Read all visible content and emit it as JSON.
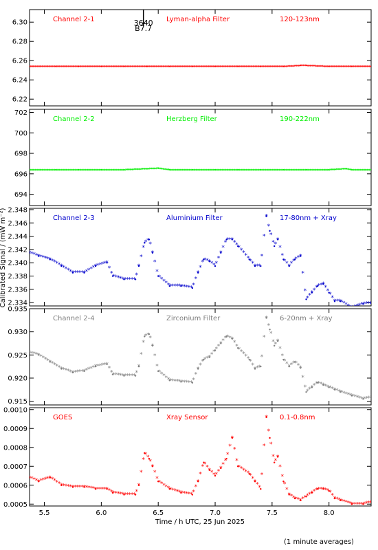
{
  "footer_note": "(1 minute averages)",
  "ylabel": "Calibrated Signal / (mW m⁻²)",
  "xlabel": "Time / h UTC, 25 Jun 2025",
  "xaxis": {
    "range": [
      5.37,
      8.37
    ],
    "ticks": [
      5.5,
      6.0,
      6.5,
      7.0,
      7.5,
      8.0
    ],
    "tick_labels": [
      "5.5",
      "6.0",
      "6.5",
      "7.0",
      "7.5",
      "8.0"
    ]
  },
  "marker_annotation": {
    "x": 6.37,
    "line1": "3640",
    "line2": "B7.7"
  },
  "chart_data": [
    {
      "type": "scatter",
      "channel": "Channel 2-1",
      "filter": "Lyman-alpha Filter",
      "band": "120-123nm",
      "color": "#ff0000",
      "ylim": [
        6.213,
        6.313
      ],
      "yticks": [
        6.22,
        6.24,
        6.26,
        6.28,
        6.3
      ],
      "ytick_labels": [
        "6.22",
        "6.24",
        "6.26",
        "6.28",
        "6.30"
      ],
      "x": [
        5.37,
        5.6,
        5.8,
        6.0,
        6.2,
        6.4,
        6.6,
        6.8,
        7.0,
        7.2,
        7.4,
        7.6,
        7.75,
        7.8,
        8.0,
        8.2,
        8.37
      ],
      "y": [
        6.254,
        6.254,
        6.254,
        6.254,
        6.254,
        6.254,
        6.254,
        6.254,
        6.254,
        6.254,
        6.254,
        6.254,
        6.255,
        6.255,
        6.254,
        6.254,
        6.254
      ]
    },
    {
      "type": "scatter",
      "channel": "Channel 2-2",
      "filter": "Herzberg Filter",
      "band": "190-222nm",
      "color": "#00ee00",
      "ylim": [
        692.9,
        702.3
      ],
      "yticks": [
        694,
        696,
        698,
        700,
        702
      ],
      "ytick_labels": [
        "694",
        "696",
        "698",
        "700",
        "702"
      ],
      "x": [
        5.37,
        5.6,
        5.8,
        6.0,
        6.2,
        6.5,
        6.6,
        6.8,
        7.0,
        7.2,
        7.4,
        7.6,
        7.8,
        8.0,
        8.15,
        8.2,
        8.37
      ],
      "y": [
        696.4,
        696.4,
        696.4,
        696.4,
        696.4,
        696.55,
        696.4,
        696.4,
        696.4,
        696.4,
        696.4,
        696.4,
        696.4,
        696.4,
        696.5,
        696.4,
        696.4
      ]
    },
    {
      "type": "scatter",
      "channel": "Channel 2-3",
      "filter": "Aluminium Filter",
      "band": "17-80nm + Xray",
      "color": "#0000cc",
      "ylim": [
        2.3335,
        2.3482
      ],
      "yticks": [
        2.334,
        2.336,
        2.338,
        2.34,
        2.342,
        2.344,
        2.346,
        2.348
      ],
      "ytick_labels": [
        "2.334",
        "2.336",
        "2.338",
        "2.340",
        "2.342",
        "2.344",
        "2.346",
        "2.348"
      ],
      "x": [
        5.37,
        5.45,
        5.55,
        5.65,
        5.75,
        5.85,
        5.95,
        6.05,
        6.1,
        6.2,
        6.3,
        6.33,
        6.38,
        6.42,
        6.45,
        6.5,
        6.6,
        6.7,
        6.8,
        6.85,
        6.9,
        6.95,
        7.0,
        7.05,
        7.1,
        7.15,
        7.2,
        7.3,
        7.35,
        7.4,
        7.45,
        7.48,
        7.52,
        7.55,
        7.6,
        7.65,
        7.7,
        7.75,
        7.8,
        7.85,
        7.9,
        7.95,
        8.0,
        8.05,
        8.1,
        8.2,
        8.3,
        8.37
      ],
      "y": [
        2.3415,
        2.341,
        2.3405,
        2.3395,
        2.3385,
        2.3385,
        2.3395,
        2.34,
        2.338,
        2.3375,
        2.3375,
        2.3395,
        2.343,
        2.3435,
        2.3415,
        2.338,
        2.3365,
        2.3365,
        2.3362,
        2.3385,
        2.3405,
        2.3402,
        2.3395,
        2.3415,
        2.3435,
        2.3435,
        2.3425,
        2.3405,
        2.3395,
        2.3395,
        2.347,
        2.3448,
        2.3425,
        2.3435,
        2.3405,
        2.3395,
        2.3405,
        2.341,
        2.3345,
        2.3355,
        2.3365,
        2.3368,
        2.3355,
        2.3342,
        2.3342,
        2.3332,
        2.3338,
        2.3339
      ]
    },
    {
      "type": "scatter",
      "channel": "Channel 2-4",
      "filter": "Zirconium Filter",
      "band": "6-20nm + Xray",
      "color": "#808080",
      "ylim": [
        0.9142,
        0.935
      ],
      "yticks": [
        0.915,
        0.92,
        0.925,
        0.93,
        0.935
      ],
      "ytick_labels": [
        "0.915",
        "0.920",
        "0.925",
        "0.930",
        "0.935"
      ],
      "x": [
        5.37,
        5.45,
        5.55,
        5.65,
        5.75,
        5.85,
        5.95,
        6.05,
        6.1,
        6.2,
        6.3,
        6.33,
        6.38,
        6.42,
        6.45,
        6.5,
        6.6,
        6.7,
        6.8,
        6.85,
        6.9,
        6.95,
        7.0,
        7.05,
        7.1,
        7.15,
        7.2,
        7.3,
        7.35,
        7.4,
        7.45,
        7.48,
        7.52,
        7.55,
        7.6,
        7.65,
        7.7,
        7.75,
        7.8,
        7.85,
        7.9,
        7.95,
        8.0,
        8.05,
        8.1,
        8.2,
        8.3,
        8.37
      ],
      "y": [
        0.9255,
        0.925,
        0.9235,
        0.922,
        0.9212,
        0.9215,
        0.9225,
        0.923,
        0.9208,
        0.9205,
        0.9205,
        0.9225,
        0.929,
        0.9295,
        0.927,
        0.9215,
        0.9195,
        0.9192,
        0.919,
        0.922,
        0.924,
        0.9245,
        0.926,
        0.9275,
        0.929,
        0.9285,
        0.9265,
        0.924,
        0.922,
        0.9225,
        0.933,
        0.9305,
        0.927,
        0.928,
        0.924,
        0.9225,
        0.9235,
        0.9222,
        0.917,
        0.918,
        0.919,
        0.9185,
        0.918,
        0.9175,
        0.917,
        0.9162,
        0.9155,
        0.9158
      ]
    },
    {
      "type": "scatter",
      "channel": "GOES",
      "filter": "Xray Sensor",
      "band": "0.1-0.8nm",
      "color": "#ff0000",
      "ylim": [
        0.00049,
        0.00101
      ],
      "yticks": [
        0.0005,
        0.0006,
        0.0007,
        0.0008,
        0.0009,
        0.001
      ],
      "ytick_labels": [
        "0.0005",
        "0.0006",
        "0.0007",
        "0.0008",
        "0.0009",
        "0.0010"
      ],
      "x": [
        5.37,
        5.45,
        5.55,
        5.65,
        5.75,
        5.85,
        5.95,
        6.05,
        6.1,
        6.2,
        6.3,
        6.33,
        6.38,
        6.42,
        6.45,
        6.5,
        6.6,
        6.7,
        6.8,
        6.85,
        6.9,
        6.95,
        7.0,
        7.05,
        7.1,
        7.15,
        7.2,
        7.3,
        7.35,
        7.4,
        7.45,
        7.48,
        7.52,
        7.55,
        7.6,
        7.65,
        7.7,
        7.75,
        7.8,
        7.85,
        7.9,
        7.95,
        8.0,
        8.05,
        8.1,
        8.2,
        8.3,
        8.37
      ],
      "y": [
        0.00064,
        0.00062,
        0.00064,
        0.0006,
        0.00059,
        0.00059,
        0.00058,
        0.00058,
        0.00056,
        0.00055,
        0.00055,
        0.0006,
        0.00077,
        0.00074,
        0.0007,
        0.00062,
        0.00058,
        0.00056,
        0.00055,
        0.00062,
        0.00072,
        0.00068,
        0.00065,
        0.00069,
        0.00074,
        0.00085,
        0.0007,
        0.00066,
        0.00062,
        0.00058,
        0.00096,
        0.00085,
        0.00072,
        0.00075,
        0.00062,
        0.00055,
        0.00053,
        0.00052,
        0.00054,
        0.00056,
        0.00058,
        0.00058,
        0.00057,
        0.00053,
        0.00052,
        0.0005,
        0.0005,
        0.00051
      ]
    }
  ]
}
